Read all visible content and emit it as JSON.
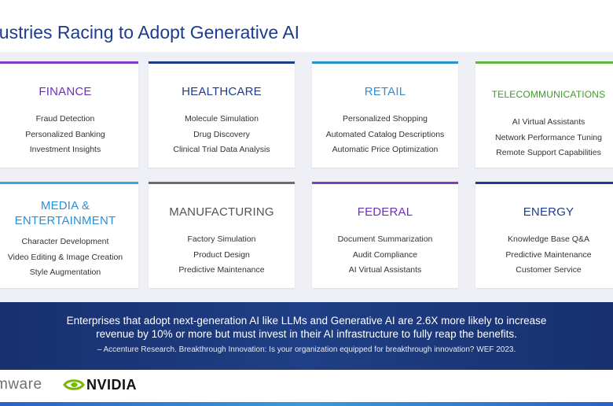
{
  "title": "dustries Racing to Adopt Generative AI",
  "cards": [
    {
      "heading": "FINANCE",
      "bar_color": "#7b3fbf",
      "heading_color": "#6e2fb8",
      "items": [
        "Fraud Detection",
        "Personalized Banking",
        "Investment Insights"
      ]
    },
    {
      "heading": "HEALTHCARE",
      "bar_color": "#1d3c8f",
      "heading_color": "#1d3c8f",
      "items": [
        "Molecule Simulation",
        "Drug Discovery",
        "Clinical Trial Data Analysis"
      ]
    },
    {
      "heading": "RETAIL",
      "bar_color": "#2f8fd3",
      "heading_color": "#2f8fd3",
      "items": [
        "Personalized Shopping",
        "Automated Catalog Descriptions",
        "Automatic Price Optimization"
      ]
    },
    {
      "heading": "TELECOMMUNICATIONS",
      "bar_color": "#5fb544",
      "heading_color": "#3e9a2b",
      "items": [
        "AI Virtual Assistants",
        "Network Performance Tuning",
        "Remote Support Capabilities"
      ]
    },
    {
      "heading": "MEDIA &\nENTERTAINMENT",
      "bar_color": "#39a8d8",
      "heading_color": "#2f8fd3",
      "items": [
        "Character Development",
        "Video Editing & Image Creation",
        "Style Augmentation"
      ]
    },
    {
      "heading": "MANUFACTURING",
      "bar_color": "#6b6b6b",
      "heading_color": "#555555",
      "items": [
        "Factory Simulation",
        "Product Design",
        "Predictive Maintenance"
      ]
    },
    {
      "heading": "FEDERAL",
      "bar_color": "#7b3fbf",
      "heading_color": "#6e2fb8",
      "items": [
        "Document Summarization",
        "Audit Compliance",
        "AI Virtual Assistants"
      ]
    },
    {
      "heading": "ENERGY",
      "bar_color": "#1d3c8f",
      "heading_color": "#1d3c8f",
      "items": [
        "Knowledge Base Q&A",
        "Predictive Maintenance",
        "Customer Service"
      ]
    }
  ],
  "banner": {
    "quote": "Enterprises that adopt next-generation AI like LLMs and Generative AI are 2.6X more likely to increase revenue by 10% or more but must invest in their AI infrastructure to fully reap the benefits.",
    "citation": "– Accenture Research. Breakthrough Innovation: Is your organization equipped for breakthrough innovation? WEF 2023."
  },
  "logos": {
    "vmware": "mware",
    "nvidia": "NVIDIA"
  },
  "colors": {
    "title": "#1d3c8f",
    "banner": "#1f3f86",
    "nvidia_green": "#76b900"
  }
}
